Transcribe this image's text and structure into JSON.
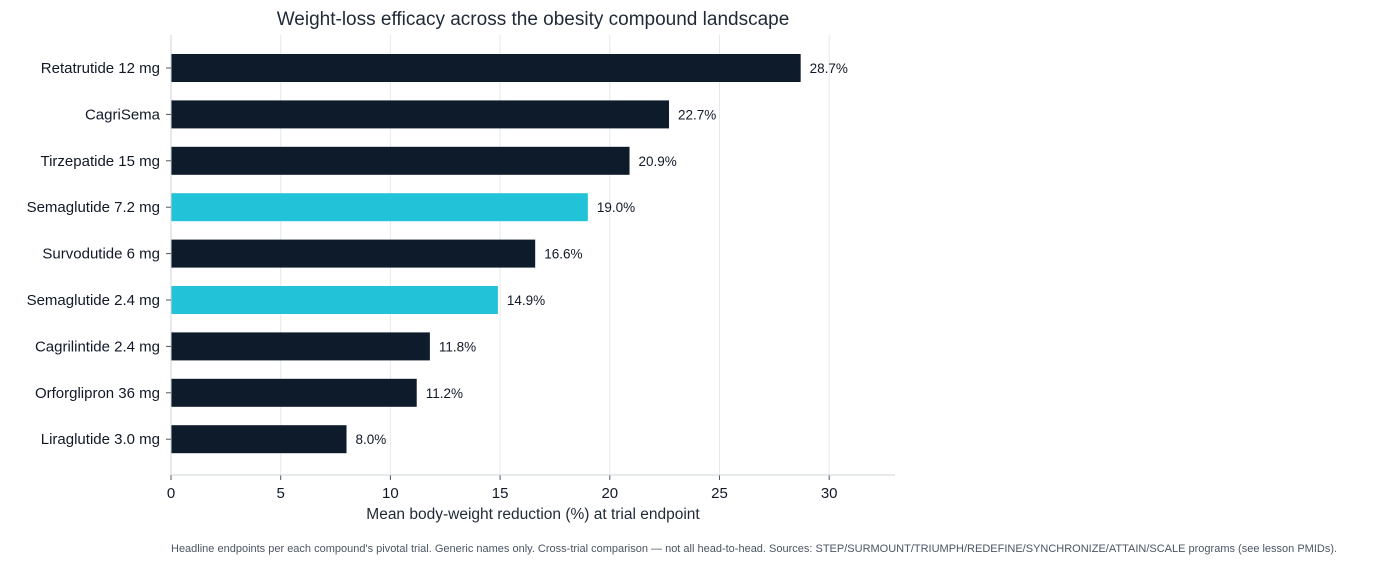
{
  "chart_data": {
    "type": "bar",
    "orientation": "horizontal",
    "title": "Weight-loss efficacy across the obesity compound landscape",
    "xlabel": "Mean body-weight reduction (%) at trial endpoint",
    "ylabel": "",
    "xlim": [
      0,
      33
    ],
    "xticks": [
      0,
      5,
      10,
      15,
      20,
      25,
      30
    ],
    "grid": "vertical",
    "categories": [
      "Retatrutide 12 mg",
      "CagriSema",
      "Tirzepatide 15 mg",
      "Semaglutide 7.2 mg",
      "Survodutide 6 mg",
      "Semaglutide 2.4 mg",
      "Cagrilintide 2.4 mg",
      "Orforglipron 36 mg",
      "Liraglutide 3.0 mg"
    ],
    "values": [
      28.7,
      22.7,
      20.9,
      19.0,
      16.6,
      14.9,
      11.8,
      11.2,
      8.0
    ],
    "value_labels": [
      "28.7%",
      "22.7%",
      "20.9%",
      "19.0%",
      "16.6%",
      "14.9%",
      "11.8%",
      "11.2%",
      "8.0%"
    ],
    "highlight": [
      false,
      false,
      false,
      true,
      false,
      true,
      false,
      false,
      false
    ],
    "colors": {
      "default": "#0d1b2a",
      "highlight": "#22c3d9",
      "grid": "#e5e7eb",
      "axis": "#cfd4da"
    }
  },
  "footnote": "Headline endpoints per each compound's pivotal trial. Generic names only. Cross-trial comparison — not all head-to-head. Sources: STEP/SURMOUNT/TRIUMPH/REDEFINE/SYNCHRONIZE/ATTAIN/SCALE programs (see lesson PMIDs)."
}
